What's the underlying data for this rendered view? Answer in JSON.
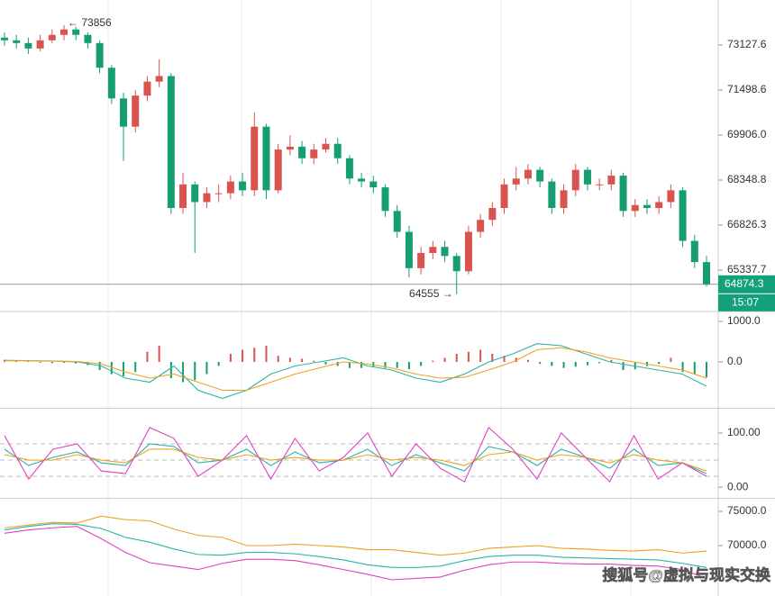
{
  "chart_data": [
    {
      "type": "candlestick",
      "log": true,
      "ylim": [
        64026,
        74794
      ],
      "yticks": [
        73127.6,
        71498.6,
        {
          "value": 69906,
          "label": "69906.0"
        },
        68348.8,
        66826.3,
        65337.7
      ],
      "up_color": "#d9534f",
      "down_color": "#169e72",
      "open": [
        73400,
        73300,
        73200,
        73000,
        73300,
        73500,
        73700,
        73500,
        73200,
        72300,
        71200,
        70200,
        71300,
        71800,
        72000,
        67400,
        68200,
        67600,
        67900,
        67900,
        68300,
        68000,
        70200,
        68000,
        69400,
        69500,
        69100,
        69400,
        69600,
        69100,
        68400,
        68300,
        68100,
        67300,
        66600,
        65400,
        65900,
        66100,
        65800,
        65300,
        66600,
        67000,
        67400,
        68200,
        68400,
        68700,
        68300,
        67400,
        68000,
        68700,
        68200,
        68200,
        68500,
        67300,
        67500,
        67400,
        67600,
        68000,
        66300,
        65600
      ],
      "high": [
        73600,
        73500,
        73400,
        73500,
        73700,
        73856,
        73800,
        73600,
        73300,
        72400,
        71400,
        71500,
        72000,
        72600,
        72100,
        68600,
        68300,
        68100,
        68200,
        68500,
        68600,
        70700,
        70300,
        69600,
        69900,
        69700,
        69600,
        69800,
        69800,
        69200,
        68600,
        68500,
        68200,
        67500,
        66800,
        66100,
        66300,
        66300,
        65900,
        66800,
        67200,
        67600,
        68400,
        68800,
        68900,
        68800,
        68400,
        68200,
        68900,
        68800,
        68400,
        68700,
        68600,
        67700,
        67700,
        67800,
        68200,
        68100,
        66500,
        65800
      ],
      "low": [
        73100,
        73000,
        72800,
        72900,
        73200,
        73300,
        73300,
        73000,
        72100,
        71000,
        69000,
        70000,
        71100,
        71600,
        67200,
        67200,
        65900,
        67400,
        67600,
        67700,
        67800,
        67800,
        67700,
        67900,
        69200,
        68900,
        68900,
        69300,
        68900,
        68200,
        68100,
        67900,
        67100,
        66400,
        65100,
        65200,
        65700,
        65600,
        64555,
        65200,
        66400,
        66800,
        67200,
        68000,
        68200,
        68100,
        67200,
        67200,
        67800,
        68000,
        68000,
        68000,
        67100,
        67100,
        67200,
        67200,
        67400,
        66100,
        65400,
        64800
      ],
      "close": [
        73300,
        73200,
        73000,
        73300,
        73500,
        73700,
        73500,
        73200,
        72300,
        71200,
        70200,
        71300,
        71800,
        72000,
        67400,
        68200,
        67600,
        67900,
        67900,
        68300,
        68000,
        70200,
        68000,
        69400,
        69500,
        69100,
        69400,
        69600,
        69100,
        68400,
        68300,
        68100,
        67300,
        66600,
        65400,
        65900,
        66100,
        65800,
        65300,
        66600,
        67000,
        67400,
        68200,
        68400,
        68700,
        68300,
        67400,
        68000,
        68700,
        68200,
        68200,
        68500,
        67300,
        67500,
        67400,
        67600,
        68000,
        66300,
        65600,
        64874.3
      ],
      "high_label": "← 73856",
      "low_label": "64555 →",
      "last_price": 64874.3,
      "countdown": "15:07"
    },
    {
      "type": "macd",
      "ylim": [
        -1111,
        1222
      ],
      "yticks": [
        {
          "value": 1000,
          "label": "1000.0"
        },
        {
          "value": 0,
          "label": "0.0"
        }
      ],
      "pos_color": "#d9534f",
      "neg_color": "#169e72",
      "histogram": [
        50,
        40,
        30,
        -20,
        -30,
        -20,
        -40,
        -80,
        -200,
        -300,
        -350,
        -250,
        250,
        400,
        -400,
        -500,
        -450,
        -300,
        -100,
        200,
        300,
        350,
        400,
        150,
        100,
        80,
        30,
        -60,
        -100,
        -150,
        -150,
        -120,
        -150,
        -150,
        -180,
        -100,
        30,
        100,
        200,
        250,
        300,
        200,
        150,
        100,
        50,
        -50,
        -100,
        -150,
        -120,
        -80,
        -30,
        50,
        -200,
        -180,
        -100,
        -50,
        100,
        -250,
        -300,
        -380
      ],
      "series": [
        {
          "color": "#2bb3a8",
          "values": [
            40,
            30,
            20,
            0,
            -100,
            -400,
            -500,
            -100,
            -700,
            -900,
            -700,
            -300,
            -100,
            0,
            100,
            -100,
            -200,
            -400,
            -500,
            -300,
            0,
            200,
            450,
            400,
            200,
            0,
            -100,
            -200,
            -300,
            -600
          ]
        },
        {
          "color": "#f0a020",
          "values": [
            30,
            30,
            25,
            10,
            -50,
            -250,
            -400,
            -300,
            -500,
            -700,
            -700,
            -500,
            -300,
            -150,
            0,
            -50,
            -150,
            -300,
            -400,
            -380,
            -200,
            0,
            300,
            350,
            250,
            100,
            0,
            -100,
            -200,
            -400
          ]
        }
      ]
    },
    {
      "type": "line",
      "ylim": [
        -18,
        143
      ],
      "yticks": [
        {
          "value": 100,
          "label": "100.00"
        },
        {
          "value": 0,
          "label": "0.00"
        }
      ],
      "hlines": [
        80,
        50,
        20
      ],
      "series": [
        {
          "color": "#2bb3a8",
          "values": [
            70,
            40,
            55,
            65,
            45,
            40,
            80,
            75,
            45,
            50,
            70,
            40,
            65,
            45,
            50,
            70,
            40,
            60,
            45,
            30,
            75,
            65,
            40,
            70,
            55,
            35,
            70,
            40,
            45,
            25
          ]
        },
        {
          "color": "#f0a020",
          "values": [
            60,
            50,
            50,
            60,
            50,
            45,
            70,
            70,
            55,
            50,
            60,
            50,
            55,
            50,
            50,
            60,
            50,
            55,
            50,
            40,
            60,
            65,
            50,
            60,
            55,
            45,
            60,
            50,
            45,
            30
          ]
        },
        {
          "color": "#e040c0",
          "values": [
            95,
            15,
            70,
            80,
            30,
            25,
            110,
            90,
            20,
            50,
            95,
            15,
            90,
            30,
            55,
            100,
            20,
            80,
            35,
            10,
            110,
            70,
            15,
            100,
            55,
            10,
            95,
            15,
            45,
            20
          ]
        }
      ]
    },
    {
      "type": "line",
      "ylim": [
        62632,
        76711
      ],
      "yticks": [
        {
          "value": 75000,
          "label": "75000.0"
        },
        {
          "value": 70000,
          "label": "70000.0"
        }
      ],
      "series": [
        {
          "color": "#f0a020",
          "values": [
            72600,
            73000,
            73400,
            73300,
            74300,
            73800,
            73600,
            72400,
            71500,
            71200,
            70000,
            70000,
            70200,
            70000,
            69800,
            69400,
            69400,
            69000,
            68600,
            68900,
            69600,
            69800,
            70000,
            69600,
            69500,
            69300,
            69200,
            69400,
            68900,
            69200
          ]
        },
        {
          "color": "#2bb3a8",
          "values": [
            72300,
            72800,
            73200,
            73100,
            72500,
            71200,
            70500,
            69500,
            68700,
            68600,
            69000,
            69000,
            68800,
            68400,
            67900,
            67200,
            66800,
            66800,
            67000,
            67800,
            68400,
            68600,
            68600,
            68300,
            68200,
            68100,
            68000,
            67900,
            67400,
            66800
          ]
        },
        {
          "color": "#e040c0",
          "values": [
            71800,
            72300,
            72600,
            72800,
            71000,
            69000,
            67500,
            67000,
            66500,
            67400,
            68000,
            68000,
            67800,
            67200,
            66500,
            65800,
            65000,
            65200,
            65400,
            66400,
            67200,
            67600,
            67600,
            67400,
            67300,
            67300,
            67100,
            67000,
            66500,
            65200
          ]
        }
      ]
    }
  ],
  "watermark": "搜狐号@虚拟与现实交换"
}
